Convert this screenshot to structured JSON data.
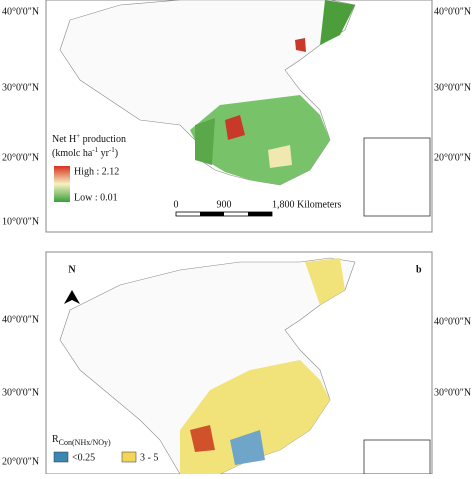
{
  "panel_a": {
    "lat_labels_left": [
      "40°0'0\"N",
      "30°0'0\"N",
      "20°0'0\"N",
      "10°0'0\"N"
    ],
    "lat_labels_right": [
      "40°0'0\"N",
      "30°0'0\"N",
      "20°0'0\"N"
    ],
    "legend": {
      "title_line1": [
        "Net H",
        "+",
        " production"
      ],
      "title_line2": [
        "(kmolc ha",
        "-1",
        " yr",
        "-1",
        ")"
      ],
      "high": "High : 2.12",
      "low": "Low : 0.01"
    },
    "scale_bar": [
      "0",
      "900",
      "1,800 Kilometers"
    ]
  },
  "panel_b": {
    "panel_letter": "b",
    "north": "N",
    "lat_labels_left": [
      "40°0'0\"N",
      "30°0'0\"N",
      "20°0'0\"N"
    ],
    "lat_labels_right": [
      "40°0'0\"N",
      "30°0'0\"N"
    ],
    "legend": {
      "title": [
        "R",
        "Con(NHx/NOy)"
      ],
      "items": [
        "<0.25",
        "3 - 5"
      ]
    }
  }
}
